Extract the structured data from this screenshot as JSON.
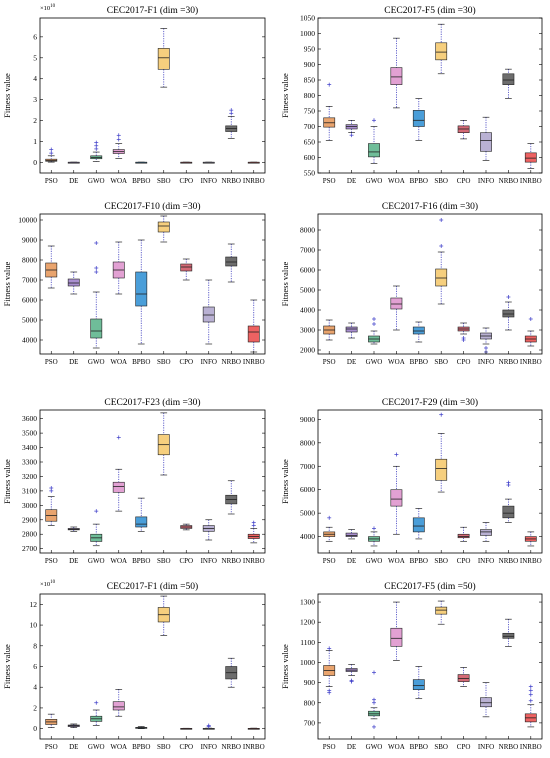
{
  "algorithms": [
    "PSO",
    "DE",
    "GWO",
    "WOA",
    "BPBO",
    "SBO",
    "CPO",
    "INFO",
    "NRBO",
    "INRBO"
  ],
  "colors": {
    "PSO": "#e9a46e",
    "DE": "#a98fd0",
    "GWO": "#6fbd99",
    "WOA": "#e2a1d3",
    "BPBO": "#4a9ed9",
    "SBO": "#f6cf7e",
    "CPO": "#d46a77",
    "INFO": "#b9b1d3",
    "NRBO": "#6d6d6d",
    "INRBO": "#ee6262"
  },
  "ylabel": "Fitness value",
  "chart_data": [
    {
      "type": "box",
      "title": "CEC2017-F1 (dim =30)",
      "ylabel": "Fitness value",
      "ylim": [
        -0.5,
        6.9
      ],
      "yticks": [
        0,
        1,
        2,
        3,
        4,
        5,
        6
      ],
      "multiplier_label": "×10",
      "multiplier_exp": "10",
      "series": [
        {
          "name": "PSO",
          "whislo": 0.02,
          "q1": 0.06,
          "med": 0.1,
          "q3": 0.16,
          "whishi": 0.32,
          "fliers": [
            0.45,
            0.62
          ]
        },
        {
          "name": "DE",
          "whislo": 0.0,
          "q1": 0.005,
          "med": 0.01,
          "q3": 0.015,
          "whishi": 0.02,
          "fliers": []
        },
        {
          "name": "GWO",
          "whislo": 0.05,
          "q1": 0.18,
          "med": 0.24,
          "q3": 0.32,
          "whishi": 0.5,
          "fliers": [
            0.65,
            0.8,
            0.95
          ]
        },
        {
          "name": "WOA",
          "whislo": 0.2,
          "q1": 0.43,
          "med": 0.52,
          "q3": 0.62,
          "whishi": 0.9,
          "fliers": [
            1.1,
            1.3
          ]
        },
        {
          "name": "BPBO",
          "whislo": 0.0,
          "q1": 0.005,
          "med": 0.01,
          "q3": 0.015,
          "whishi": 0.02,
          "fliers": []
        },
        {
          "name": "SBO",
          "whislo": 3.6,
          "q1": 4.45,
          "med": 5.0,
          "q3": 5.45,
          "whishi": 6.4,
          "fliers": []
        },
        {
          "name": "CPO",
          "whislo": 0.0,
          "q1": 0.005,
          "med": 0.01,
          "q3": 0.015,
          "whishi": 0.02,
          "fliers": []
        },
        {
          "name": "INFO",
          "whislo": 0.0,
          "q1": 0.005,
          "med": 0.01,
          "q3": 0.015,
          "whishi": 0.02,
          "fliers": []
        },
        {
          "name": "NRBO",
          "whislo": 1.15,
          "q1": 1.48,
          "med": 1.63,
          "q3": 1.75,
          "whishi": 2.2,
          "fliers": [
            2.35,
            2.5
          ]
        },
        {
          "name": "INRBO",
          "whislo": 0.0,
          "q1": 0.005,
          "med": 0.01,
          "q3": 0.015,
          "whishi": 0.02,
          "fliers": []
        }
      ]
    },
    {
      "type": "box",
      "title": "CEC2017-F5 (dim =30)",
      "ylabel": "Fitness value",
      "ylim": [
        550,
        1050
      ],
      "yticks": [
        550,
        600,
        650,
        700,
        750,
        800,
        850,
        900,
        950,
        1000,
        1050
      ],
      "series": [
        {
          "name": "PSO",
          "whislo": 655,
          "q1": 698,
          "med": 712,
          "q3": 728,
          "whishi": 765,
          "fliers": [
            835
          ]
        },
        {
          "name": "DE",
          "whislo": 680,
          "q1": 692,
          "med": 700,
          "q3": 706,
          "whishi": 720,
          "fliers": [
            672
          ]
        },
        {
          "name": "GWO",
          "whislo": 580,
          "q1": 602,
          "med": 618,
          "q3": 645,
          "whishi": 700,
          "fliers": [
            720
          ]
        },
        {
          "name": "WOA",
          "whislo": 760,
          "q1": 835,
          "med": 860,
          "q3": 890,
          "whishi": 985,
          "fliers": []
        },
        {
          "name": "BPBO",
          "whislo": 655,
          "q1": 700,
          "med": 720,
          "q3": 752,
          "whishi": 790,
          "fliers": []
        },
        {
          "name": "SBO",
          "whislo": 870,
          "q1": 915,
          "med": 940,
          "q3": 970,
          "whishi": 1030,
          "fliers": []
        },
        {
          "name": "CPO",
          "whislo": 660,
          "q1": 680,
          "med": 692,
          "q3": 702,
          "whishi": 720,
          "fliers": []
        },
        {
          "name": "INFO",
          "whislo": 590,
          "q1": 620,
          "med": 655,
          "q3": 680,
          "whishi": 730,
          "fliers": []
        },
        {
          "name": "NRBO",
          "whislo": 790,
          "q1": 835,
          "med": 850,
          "q3": 870,
          "whishi": 885,
          "fliers": []
        },
        {
          "name": "INRBO",
          "whislo": 565,
          "q1": 585,
          "med": 598,
          "q3": 615,
          "whishi": 645,
          "fliers": []
        }
      ]
    },
    {
      "type": "box",
      "title": "CEC2017-F10 (dim =30)",
      "ylabel": "Fitness value",
      "ylim": [
        3300,
        10300
      ],
      "yticks": [
        4000,
        5000,
        6000,
        7000,
        8000,
        9000,
        10000
      ],
      "series": [
        {
          "name": "PSO",
          "whislo": 6600,
          "q1": 7150,
          "med": 7500,
          "q3": 7850,
          "whishi": 8700,
          "fliers": []
        },
        {
          "name": "DE",
          "whislo": 6300,
          "q1": 6700,
          "med": 6850,
          "q3": 7050,
          "whishi": 7400,
          "fliers": []
        },
        {
          "name": "GWO",
          "whislo": 3600,
          "q1": 4100,
          "med": 4450,
          "q3": 5050,
          "whishi": 6400,
          "fliers": [
            7400,
            7600,
            8850
          ]
        },
        {
          "name": "WOA",
          "whislo": 6300,
          "q1": 7100,
          "med": 7500,
          "q3": 7900,
          "whishi": 8900,
          "fliers": []
        },
        {
          "name": "BPBO",
          "whislo": 3800,
          "q1": 5700,
          "med": 6300,
          "q3": 7400,
          "whishi": 9000,
          "fliers": []
        },
        {
          "name": "SBO",
          "whislo": 8900,
          "q1": 9400,
          "med": 9700,
          "q3": 9900,
          "whishi": 10200,
          "fliers": []
        },
        {
          "name": "CPO",
          "whislo": 7000,
          "q1": 7450,
          "med": 7650,
          "q3": 7800,
          "whishi": 8050,
          "fliers": []
        },
        {
          "name": "INFO",
          "whislo": 3800,
          "q1": 4900,
          "med": 5250,
          "q3": 5650,
          "whishi": 7000,
          "fliers": []
        },
        {
          "name": "NRBO",
          "whislo": 6900,
          "q1": 7700,
          "med": 7900,
          "q3": 8150,
          "whishi": 8800,
          "fliers": []
        },
        {
          "name": "INRBO",
          "whislo": 3400,
          "q1": 3900,
          "med": 4400,
          "q3": 4700,
          "whishi": 6000,
          "fliers": []
        }
      ]
    },
    {
      "type": "box",
      "title": "CEC2017-F16 (dim =30)",
      "ylabel": "Fitness value",
      "ylim": [
        1800,
        8800
      ],
      "yticks": [
        2000,
        3000,
        4000,
        5000,
        6000,
        7000,
        8000
      ],
      "series": [
        {
          "name": "PSO",
          "whislo": 2500,
          "q1": 2800,
          "med": 3000,
          "q3": 3200,
          "whishi": 3500,
          "fliers": []
        },
        {
          "name": "DE",
          "whislo": 2600,
          "q1": 2900,
          "med": 3050,
          "q3": 3150,
          "whishi": 3350,
          "fliers": []
        },
        {
          "name": "GWO",
          "whislo": 2300,
          "q1": 2400,
          "med": 2550,
          "q3": 2700,
          "whishi": 2950,
          "fliers": [
            3300,
            3550
          ]
        },
        {
          "name": "WOA",
          "whislo": 3000,
          "q1": 4050,
          "med": 4300,
          "q3": 4600,
          "whishi": 5200,
          "fliers": []
        },
        {
          "name": "BPBO",
          "whislo": 2400,
          "q1": 2800,
          "med": 2950,
          "q3": 3150,
          "whishi": 3400,
          "fliers": []
        },
        {
          "name": "SBO",
          "whislo": 4300,
          "q1": 5200,
          "med": 5600,
          "q3": 6050,
          "whishi": 6900,
          "fliers": [
            7200,
            8500
          ]
        },
        {
          "name": "CPO",
          "whislo": 2800,
          "q1": 2950,
          "med": 3050,
          "q3": 3150,
          "whishi": 3350,
          "fliers": [
            2600,
            2500
          ]
        },
        {
          "name": "INFO",
          "whislo": 2300,
          "q1": 2550,
          "med": 2700,
          "q3": 2850,
          "whishi": 3100,
          "fliers": [
            2100,
            1900
          ]
        },
        {
          "name": "NRBO",
          "whislo": 3000,
          "q1": 3650,
          "med": 3800,
          "q3": 4000,
          "whishi": 4400,
          "fliers": [
            4650
          ]
        },
        {
          "name": "INRBO",
          "whislo": 2200,
          "q1": 2400,
          "med": 2550,
          "q3": 2700,
          "whishi": 2950,
          "fliers": [
            3550
          ]
        }
      ]
    },
    {
      "type": "box",
      "title": "CEC2017-F23 (dim =30)",
      "ylabel": "Fitness value",
      "ylim": [
        2670,
        3660
      ],
      "yticks": [
        2700,
        2800,
        2900,
        3000,
        3100,
        3200,
        3300,
        3400,
        3500,
        3600
      ],
      "series": [
        {
          "name": "PSO",
          "whislo": 2860,
          "q1": 2890,
          "med": 2930,
          "q3": 2970,
          "whishi": 3060,
          "fliers": [
            3100,
            3120
          ]
        },
        {
          "name": "DE",
          "whislo": 2820,
          "q1": 2830,
          "med": 2835,
          "q3": 2840,
          "whishi": 2850,
          "fliers": []
        },
        {
          "name": "GWO",
          "whislo": 2720,
          "q1": 2750,
          "med": 2775,
          "q3": 2800,
          "whishi": 2870,
          "fliers": [
            2960
          ]
        },
        {
          "name": "WOA",
          "whislo": 2960,
          "q1": 3090,
          "med": 3130,
          "q3": 3160,
          "whishi": 3250,
          "fliers": [
            3470
          ]
        },
        {
          "name": "BPBO",
          "whislo": 2820,
          "q1": 2850,
          "med": 2870,
          "q3": 2920,
          "whishi": 3050,
          "fliers": []
        },
        {
          "name": "SBO",
          "whislo": 3210,
          "q1": 3350,
          "med": 3420,
          "q3": 3490,
          "whishi": 3640,
          "fliers": []
        },
        {
          "name": "CPO",
          "whislo": 2830,
          "q1": 2840,
          "med": 2850,
          "q3": 2860,
          "whishi": 2870,
          "fliers": []
        },
        {
          "name": "INFO",
          "whislo": 2760,
          "q1": 2820,
          "med": 2840,
          "q3": 2860,
          "whishi": 2900,
          "fliers": []
        },
        {
          "name": "NRBO",
          "whislo": 2940,
          "q1": 3010,
          "med": 3040,
          "q3": 3070,
          "whishi": 3170,
          "fliers": []
        },
        {
          "name": "INRBO",
          "whislo": 2740,
          "q1": 2770,
          "med": 2785,
          "q3": 2800,
          "whishi": 2840,
          "fliers": [
            2860,
            2880
          ]
        }
      ]
    },
    {
      "type": "box",
      "title": "CEC2017-F29 (dim =30)",
      "ylabel": "Fitness value",
      "ylim": [
        3300,
        9400
      ],
      "yticks": [
        4000,
        5000,
        6000,
        7000,
        8000,
        9000
      ],
      "series": [
        {
          "name": "PSO",
          "whislo": 3800,
          "q1": 4000,
          "med": 4100,
          "q3": 4200,
          "whishi": 4400,
          "fliers": [
            4800
          ]
        },
        {
          "name": "DE",
          "whislo": 3900,
          "q1": 4000,
          "med": 4050,
          "q3": 4150,
          "whishi": 4300,
          "fliers": []
        },
        {
          "name": "GWO",
          "whislo": 3600,
          "q1": 3800,
          "med": 3900,
          "q3": 4000,
          "whishi": 4200,
          "fliers": [
            4350
          ]
        },
        {
          "name": "WOA",
          "whislo": 4100,
          "q1": 5300,
          "med": 5600,
          "q3": 6000,
          "whishi": 7000,
          "fliers": [
            7500
          ]
        },
        {
          "name": "BPBO",
          "whislo": 3900,
          "q1": 4200,
          "med": 4450,
          "q3": 4800,
          "whishi": 5200,
          "fliers": []
        },
        {
          "name": "SBO",
          "whislo": 5900,
          "q1": 6400,
          "med": 6900,
          "q3": 7300,
          "whishi": 8400,
          "fliers": [
            9200
          ]
        },
        {
          "name": "CPO",
          "whislo": 3800,
          "q1": 3950,
          "med": 4000,
          "q3": 4100,
          "whishi": 4400,
          "fliers": []
        },
        {
          "name": "INFO",
          "whislo": 3800,
          "q1": 4050,
          "med": 4200,
          "q3": 4300,
          "whishi": 4600,
          "fliers": []
        },
        {
          "name": "NRBO",
          "whislo": 4600,
          "q1": 4800,
          "med": 5000,
          "q3": 5300,
          "whishi": 5600,
          "fliers": [
            6200,
            6300
          ]
        },
        {
          "name": "INRBO",
          "whislo": 3600,
          "q1": 3800,
          "med": 3900,
          "q3": 4000,
          "whishi": 4200,
          "fliers": []
        }
      ]
    },
    {
      "type": "box",
      "title": "CEC2017-F1 (dim =50)",
      "ylabel": "Fitness value",
      "ylim": [
        -1,
        13
      ],
      "yticks": [
        0,
        2,
        4,
        6,
        8,
        10,
        12
      ],
      "multiplier_label": "×10",
      "multiplier_exp": "10",
      "series": [
        {
          "name": "PSO",
          "whislo": 0.1,
          "q1": 0.4,
          "med": 0.65,
          "q3": 0.9,
          "whishi": 1.4,
          "fliers": []
        },
        {
          "name": "DE",
          "whislo": 0.1,
          "q1": 0.2,
          "med": 0.28,
          "q3": 0.35,
          "whishi": 0.45,
          "fliers": []
        },
        {
          "name": "GWO",
          "whislo": 0.3,
          "q1": 0.7,
          "med": 0.95,
          "q3": 1.2,
          "whishi": 1.8,
          "fliers": [
            2.5
          ]
        },
        {
          "name": "WOA",
          "whislo": 1.2,
          "q1": 1.8,
          "med": 2.1,
          "q3": 2.6,
          "whishi": 3.8,
          "fliers": []
        },
        {
          "name": "BPBO",
          "whislo": 0.0,
          "q1": 0.05,
          "med": 0.08,
          "q3": 0.12,
          "whishi": 0.2,
          "fliers": []
        },
        {
          "name": "SBO",
          "whislo": 9.0,
          "q1": 10.3,
          "med": 11.0,
          "q3": 11.7,
          "whishi": 12.8,
          "fliers": []
        },
        {
          "name": "CPO",
          "whislo": 0.0,
          "q1": 0.01,
          "med": 0.02,
          "q3": 0.03,
          "whishi": 0.04,
          "fliers": []
        },
        {
          "name": "INFO",
          "whislo": 0.0,
          "q1": 0.01,
          "med": 0.02,
          "q3": 0.03,
          "whishi": 0.05,
          "fliers": [
            0.2,
            0.3
          ]
        },
        {
          "name": "NRBO",
          "whislo": 4.0,
          "q1": 4.8,
          "med": 5.4,
          "q3": 6.0,
          "whishi": 6.8,
          "fliers": []
        },
        {
          "name": "INRBO",
          "whislo": 0.0,
          "q1": 0.01,
          "med": 0.02,
          "q3": 0.03,
          "whishi": 0.05,
          "fliers": []
        }
      ]
    },
    {
      "type": "box",
      "title": "CEC2017-F5 (dim =50)",
      "ylabel": "Fitness value",
      "ylim": [
        620,
        1340
      ],
      "yticks": [
        700,
        800,
        900,
        1000,
        1100,
        1200,
        1300
      ],
      "series": [
        {
          "name": "PSO",
          "whislo": 880,
          "q1": 935,
          "med": 960,
          "q3": 985,
          "whishi": 1060,
          "fliers": [
            850,
            860,
            1070
          ]
        },
        {
          "name": "DE",
          "whislo": 935,
          "q1": 955,
          "med": 962,
          "q3": 970,
          "whishi": 990,
          "fliers": [
            910,
            905
          ]
        },
        {
          "name": "GWO",
          "whislo": 720,
          "q1": 735,
          "med": 745,
          "q3": 758,
          "whishi": 775,
          "fliers": [
            800,
            815,
            950,
            680
          ]
        },
        {
          "name": "WOA",
          "whislo": 1010,
          "q1": 1080,
          "med": 1120,
          "q3": 1170,
          "whishi": 1300,
          "fliers": []
        },
        {
          "name": "BPBO",
          "whislo": 820,
          "q1": 865,
          "med": 885,
          "q3": 915,
          "whishi": 980,
          "fliers": []
        },
        {
          "name": "SBO",
          "whislo": 1190,
          "q1": 1240,
          "med": 1260,
          "q3": 1275,
          "whishi": 1305,
          "fliers": []
        },
        {
          "name": "CPO",
          "whislo": 880,
          "q1": 905,
          "med": 920,
          "q3": 940,
          "whishi": 975,
          "fliers": []
        },
        {
          "name": "INFO",
          "whislo": 730,
          "q1": 780,
          "med": 800,
          "q3": 825,
          "whishi": 900,
          "fliers": []
        },
        {
          "name": "NRBO",
          "whislo": 1080,
          "q1": 1120,
          "med": 1130,
          "q3": 1145,
          "whishi": 1215,
          "fliers": []
        },
        {
          "name": "INRBO",
          "whislo": 680,
          "q1": 705,
          "med": 725,
          "q3": 745,
          "whishi": 790,
          "fliers": [
            810,
            840,
            860,
            880
          ]
        }
      ]
    }
  ]
}
